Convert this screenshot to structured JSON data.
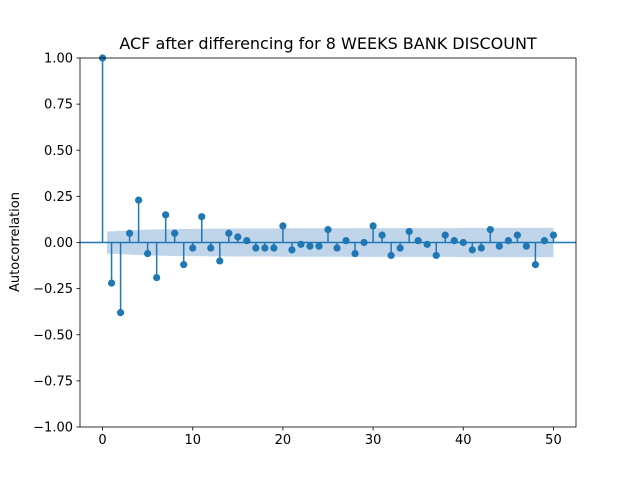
{
  "chart_data": {
    "type": "stem",
    "title": "ACF after differencing for 8 WEEKS BANK DISCOUNT",
    "xlabel": "",
    "ylabel": "Autocorrelation",
    "xlim": [
      -2.5,
      52.5
    ],
    "ylim": [
      -1.0,
      1.0
    ],
    "x_ticks": [
      0,
      10,
      20,
      30,
      40,
      50
    ],
    "x_tick_labels": [
      "0",
      "10",
      "20",
      "30",
      "40",
      "50"
    ],
    "y_ticks": [
      -1.0,
      -0.75,
      -0.5,
      -0.25,
      0.0,
      0.25,
      0.5,
      0.75,
      1.0
    ],
    "y_tick_labels": [
      "−1.00",
      "−0.75",
      "−0.50",
      "−0.25",
      "0.00",
      "0.25",
      "0.50",
      "0.75",
      "1.00"
    ],
    "grid": false,
    "series": [
      {
        "lags": [
          0,
          1,
          2,
          3,
          4,
          5,
          6,
          7,
          8,
          9,
          10,
          11,
          12,
          13,
          14,
          15,
          16,
          17,
          18,
          19,
          20,
          21,
          22,
          23,
          24,
          25,
          26,
          27,
          28,
          29,
          30,
          31,
          32,
          33,
          34,
          35,
          36,
          37,
          38,
          39,
          40,
          41,
          42,
          43,
          44,
          45,
          46,
          47,
          48,
          49,
          50
        ],
        "values": [
          1.0,
          -0.22,
          -0.38,
          0.05,
          0.23,
          -0.06,
          -0.19,
          0.15,
          0.05,
          -0.12,
          -0.03,
          0.14,
          -0.03,
          -0.1,
          0.05,
          0.03,
          0.01,
          -0.03,
          -0.03,
          -0.03,
          0.09,
          -0.04,
          -0.01,
          -0.02,
          -0.02,
          0.07,
          -0.03,
          0.01,
          -0.06,
          0.0,
          0.09,
          0.04,
          -0.07,
          -0.03,
          0.06,
          0.01,
          -0.01,
          -0.07,
          0.04,
          0.01,
          0.0,
          -0.04,
          -0.03,
          0.07,
          -0.02,
          0.01,
          0.04,
          -0.02,
          -0.12,
          0.01,
          0.04
        ]
      }
    ],
    "confidence_band": {
      "lags": [
        0,
        1,
        2,
        3,
        4,
        5,
        6,
        7,
        8,
        9,
        10,
        11,
        12,
        13,
        14,
        15,
        16,
        17,
        18,
        19,
        20,
        21,
        22,
        23,
        24,
        25,
        26,
        27,
        28,
        29,
        30,
        31,
        32,
        33,
        34,
        35,
        36,
        37,
        38,
        39,
        40,
        41,
        42,
        43,
        44,
        45,
        46,
        47,
        48,
        49,
        50
      ],
      "upper": [
        0.06,
        0.06,
        0.063,
        0.065,
        0.068,
        0.07,
        0.071,
        0.072,
        0.073,
        0.073,
        0.074,
        0.074,
        0.075,
        0.075,
        0.075,
        0.076,
        0.076,
        0.076,
        0.076,
        0.076,
        0.077,
        0.077,
        0.077,
        0.077,
        0.077,
        0.077,
        0.077,
        0.077,
        0.078,
        0.078,
        0.078,
        0.078,
        0.078,
        0.078,
        0.078,
        0.078,
        0.078,
        0.078,
        0.078,
        0.078,
        0.079,
        0.079,
        0.079,
        0.079,
        0.079,
        0.079,
        0.079,
        0.079,
        0.079,
        0.079,
        0.08
      ]
    },
    "colors": {
      "stem": "#1f77b4",
      "band": "#b0cbe4",
      "zero_line": "#1f77b4"
    }
  }
}
